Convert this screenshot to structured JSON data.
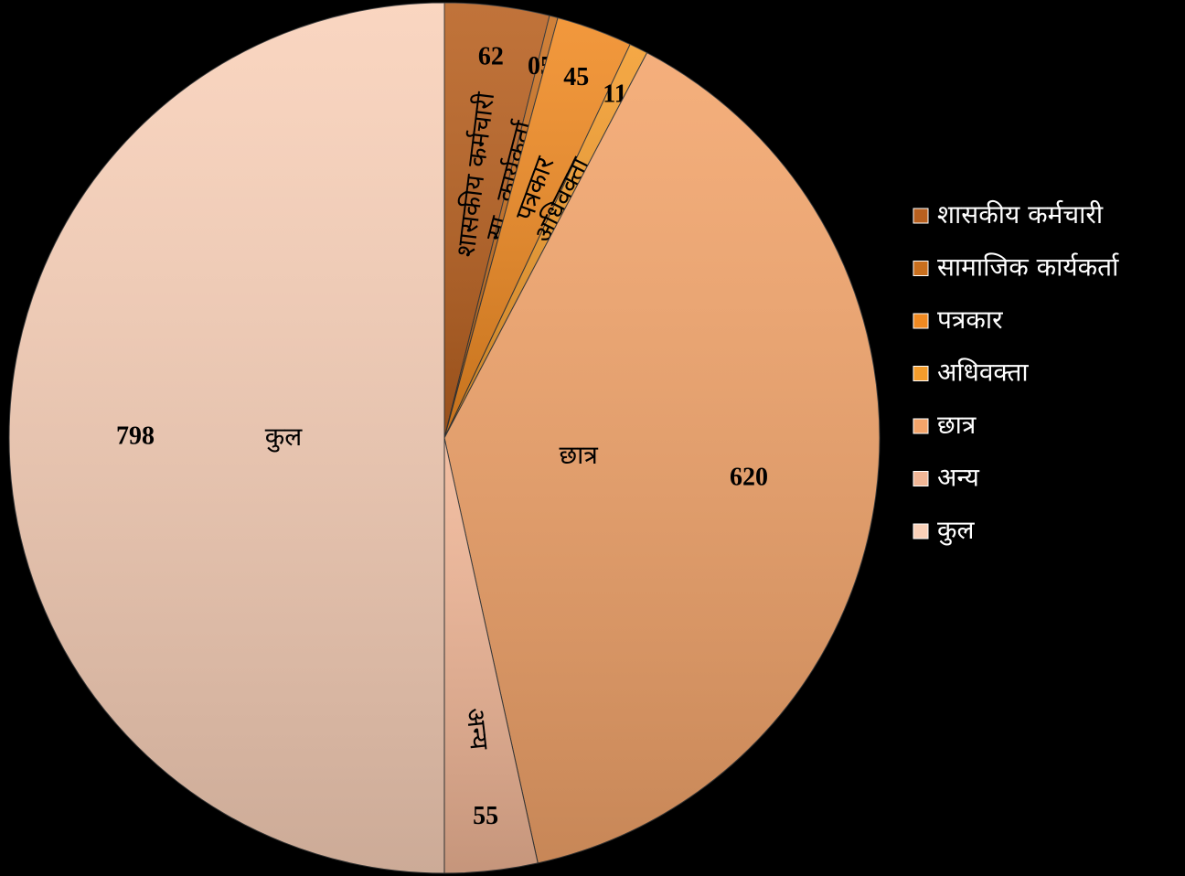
{
  "chart_data": {
    "type": "pie",
    "categories": [
      "शासकीय कर्मचारी",
      "सामाजिक कार्यकर्ता",
      "पत्रकार",
      "अधिवक्ता",
      "छात्र",
      "अन्य",
      "कुल"
    ],
    "slice_labels": [
      "शासकीय कर्मचारी",
      "सा. कार्यकर्ता",
      "पत्रकार",
      "अधिवक्ता",
      "छात्र",
      "अन्य",
      "कुल"
    ],
    "values": [
      62,
      5,
      45,
      11,
      620,
      55,
      798
    ],
    "value_labels": [
      "62",
      "05",
      "45",
      "11",
      "620",
      "55",
      "798"
    ],
    "colors": [
      "#b8601f",
      "#c96f1e",
      "#f08a22",
      "#f39c2c",
      "#f3a46a",
      "#f1b696",
      "#f9d0b8"
    ],
    "legend": "right"
  }
}
